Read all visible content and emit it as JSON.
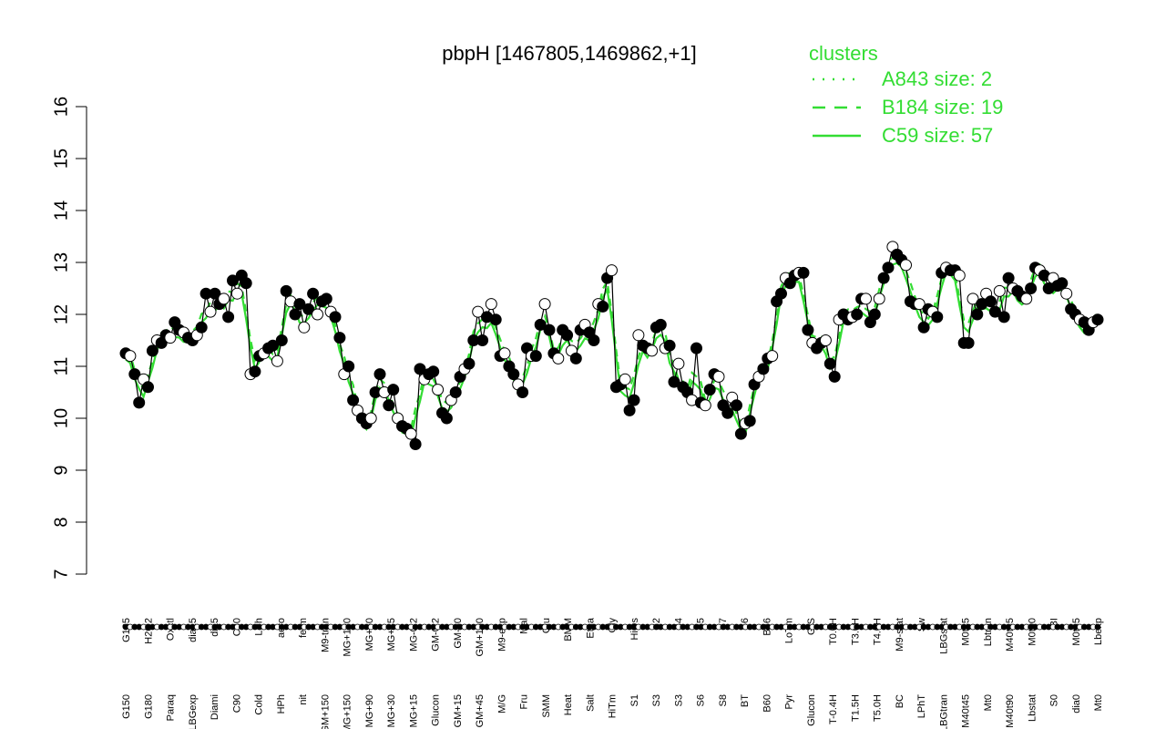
{
  "chart_data": {
    "type": "line",
    "title": "pbpH [1467805,1469862,+1]",
    "ylim": [
      7,
      16
    ],
    "yticks": [
      7,
      8,
      9,
      10,
      11,
      12,
      13,
      14,
      15,
      16
    ],
    "legend": {
      "title": "clusters",
      "placement": "top-right",
      "color": "#33dd33",
      "entries": [
        {
          "label": "A843 size: 2",
          "style": "dotted"
        },
        {
          "label": "B184 size: 19",
          "style": "dashed"
        },
        {
          "label": "C59 size: 57",
          "style": "solid"
        }
      ]
    },
    "x_labels_upper": [
      "G135",
      "H2O2",
      "Oxctl",
      "dia15",
      "dia5",
      "C30",
      "LPh",
      "aero",
      "ferm",
      "M9-tran",
      "MG+120",
      "MG+60",
      "MG+45",
      "MG-0.2",
      "GM-0.2",
      "GM-60",
      "GM+150",
      "M9-exp",
      "Mal",
      "Glu",
      "BMM",
      "Etha",
      "Gly",
      "HiOs",
      "S2",
      "S4",
      "S5",
      "S7",
      "S6",
      "B36",
      "LoTm",
      "G/S",
      "T0.0H",
      "T3.0H",
      "T4.0H",
      "M9-stat",
      "Sw",
      "LBGstat",
      "M0t45",
      "Lbtran",
      "M40t45",
      "M0t90",
      "BI",
      "M0t45",
      "Lbexp"
    ],
    "x_labels_lower": [
      "G150",
      "G180",
      "Paraq",
      "LBGexp",
      "Diami",
      "C90",
      "Cold",
      "HPh",
      "nit",
      "GM+150",
      "MG+150",
      "MG+90",
      "MG+30",
      "MG+15",
      "Glucon",
      "GM+15",
      "GM+45",
      "M/G",
      "Fru",
      "SMM",
      "Heat",
      "Salt",
      "HiTm",
      "S1",
      "S3",
      "S3",
      "S6",
      "S8",
      "BT",
      "B60",
      "Pyr",
      "Glucon",
      "T-0.4H",
      "T1.5H",
      "T5.0H",
      "BC",
      "LPhT",
      "LBGtran",
      "M40t45",
      "Mt0",
      "M40t90",
      "Lbstat",
      "S0",
      "dia0",
      "Mt0"
    ],
    "points": [
      11.25,
      11.2,
      10.85,
      10.3,
      10.75,
      10.6,
      11.3,
      11.5,
      11.45,
      11.6,
      11.55,
      11.85,
      11.7,
      11.65,
      11.55,
      11.5,
      11.6,
      11.75,
      12.4,
      12.05,
      12.4,
      12.2,
      12.3,
      11.95,
      12.65,
      12.4,
      12.75,
      12.6,
      10.85,
      10.9,
      11.2,
      11.25,
      11.35,
      11.4,
      11.1,
      11.5,
      12.45,
      12.25,
      12.0,
      12.2,
      11.75,
      12.1,
      12.4,
      12.0,
      12.25,
      12.3,
      12.05,
      11.95,
      11.55,
      10.85,
      11.0,
      10.35,
      10.15,
      10.0,
      9.9,
      10.0,
      10.5,
      10.85,
      10.5,
      10.25,
      10.55,
      10.0,
      9.85,
      9.8,
      9.7,
      9.5,
      10.95,
      10.75,
      10.85,
      10.9,
      10.55,
      10.1,
      10.0,
      10.35,
      10.5,
      10.8,
      10.95,
      11.05,
      11.5,
      12.05,
      11.5,
      11.95,
      12.2,
      11.9,
      11.2,
      11.25,
      11.0,
      10.85,
      10.65,
      10.5,
      11.35,
      11.2,
      11.2,
      11.8,
      12.2,
      11.7,
      11.25,
      11.15,
      11.7,
      11.6,
      11.3,
      11.15,
      11.7,
      11.8,
      11.65,
      11.5,
      12.2,
      12.15,
      12.7,
      12.85,
      10.6,
      10.65,
      10.75,
      10.15,
      10.35,
      11.6,
      11.4,
      11.35,
      11.3,
      11.75,
      11.8,
      11.35,
      11.4,
      10.7,
      11.05,
      10.6,
      10.5,
      10.35,
      11.35,
      10.3,
      10.25,
      10.55,
      10.85,
      10.8,
      10.25,
      10.1,
      10.4,
      10.25,
      9.7,
      9.9,
      9.95,
      10.65,
      10.8,
      10.95,
      11.15,
      11.2,
      12.25,
      12.4,
      12.7,
      12.6,
      12.75,
      12.8,
      12.8,
      11.7,
      11.45,
      11.35,
      11.45,
      11.5,
      11.05,
      10.8,
      11.9,
      12.0,
      11.9,
      11.95,
      12.0,
      12.3,
      12.3,
      11.85,
      12.0,
      12.3,
      12.7,
      12.9,
      13.3,
      13.15,
      13.05,
      12.95,
      12.25,
      12.2,
      12.2,
      11.75,
      12.1,
      12.05,
      11.95,
      12.8,
      12.9,
      12.85,
      12.85,
      12.75,
      11.45,
      11.45,
      12.3,
      12.0,
      12.2,
      12.4,
      12.25,
      12.05,
      12.45,
      11.95,
      12.7,
      12.5,
      12.45,
      12.35,
      12.3,
      12.5,
      12.9,
      12.85,
      12.75,
      12.5,
      12.7,
      12.55,
      12.6,
      12.4,
      12.1,
      12.0,
      11.9,
      11.85,
      11.7,
      11.85,
      11.9
    ]
  }
}
